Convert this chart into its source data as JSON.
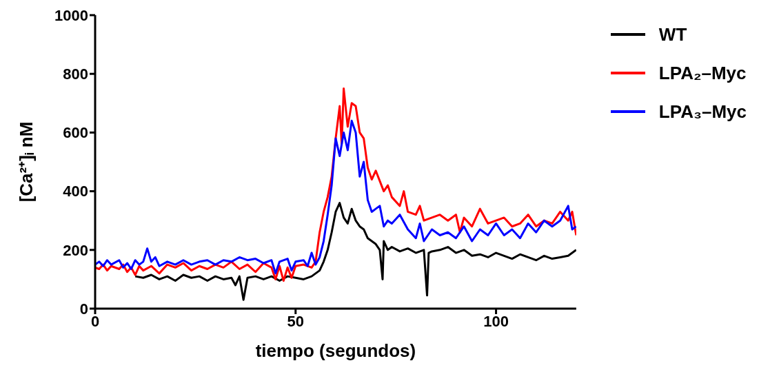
{
  "chart_data": {
    "type": "line",
    "xlabel": "tiempo (segundos)",
    "ylabel": "[Ca²⁺]ᵢ nM",
    "xlim": [
      0,
      120
    ],
    "xticks": [
      0,
      50,
      100
    ],
    "ylim": [
      0,
      1000
    ],
    "yticks": [
      0,
      200,
      400,
      600,
      800,
      1000
    ],
    "grid": false,
    "legend": "right",
    "marker": "none",
    "line_style": "solid",
    "series": [
      {
        "name": "WT",
        "color": "#000000",
        "x": [
          10,
          12,
          14,
          16,
          18,
          20,
          22,
          24,
          26,
          28,
          30,
          32,
          34,
          35,
          36,
          37,
          38,
          40,
          42,
          44,
          46,
          48,
          50,
          52,
          54,
          56,
          57,
          58,
          59,
          60,
          61,
          62,
          63,
          64,
          65,
          66,
          67,
          68,
          70,
          71,
          71.7,
          72,
          73,
          74,
          76,
          78,
          80,
          82,
          82.8,
          83.2,
          84,
          86,
          88,
          90,
          92,
          94,
          96,
          98,
          100,
          102,
          104,
          106,
          108,
          110,
          112,
          114,
          116,
          118,
          120
        ],
        "values": [
          110,
          105,
          115,
          100,
          110,
          95,
          115,
          105,
          110,
          95,
          110,
          100,
          105,
          80,
          110,
          30,
          105,
          110,
          100,
          110,
          95,
          110,
          105,
          100,
          110,
          130,
          160,
          200,
          260,
          330,
          360,
          310,
          290,
          340,
          300,
          280,
          270,
          240,
          220,
          200,
          100,
          230,
          200,
          210,
          195,
          205,
          190,
          200,
          45,
          190,
          195,
          200,
          210,
          190,
          200,
          180,
          185,
          175,
          190,
          180,
          170,
          185,
          175,
          165,
          180,
          170,
          175,
          180,
          200
        ]
      },
      {
        "name": "LPA₂–Myc",
        "color": "#ff0000",
        "x": [
          0,
          1,
          2,
          3,
          4,
          6,
          7,
          8,
          9,
          10,
          11,
          12,
          14,
          16,
          18,
          20,
          22,
          24,
          26,
          28,
          30,
          32,
          34,
          36,
          38,
          40,
          42,
          44,
          45,
          46,
          47,
          48,
          49,
          50,
          52,
          54,
          55,
          56,
          57,
          58,
          59,
          60,
          61,
          61.5,
          62,
          63,
          64,
          65,
          66,
          67,
          68,
          69,
          70,
          72,
          73,
          74,
          76,
          77,
          78,
          80,
          81,
          82,
          84,
          86,
          88,
          90,
          91,
          92,
          94,
          96,
          98,
          100,
          102,
          104,
          106,
          108,
          110,
          112,
          114,
          116,
          118,
          119,
          120
        ],
        "values": [
          140,
          135,
          150,
          130,
          145,
          135,
          150,
          125,
          140,
          115,
          145,
          130,
          145,
          120,
          150,
          140,
          155,
          130,
          145,
          135,
          150,
          140,
          160,
          135,
          150,
          125,
          155,
          140,
          100,
          145,
          95,
          140,
          105,
          145,
          150,
          140,
          160,
          260,
          330,
          380,
          450,
          580,
          690,
          560,
          750,
          620,
          700,
          690,
          600,
          580,
          480,
          440,
          470,
          400,
          420,
          380,
          350,
          400,
          330,
          320,
          350,
          300,
          310,
          320,
          300,
          320,
          260,
          310,
          280,
          340,
          290,
          300,
          310,
          280,
          290,
          320,
          280,
          300,
          290,
          330,
          300,
          330,
          250
        ]
      },
      {
        "name": "LPA₃–Myc",
        "color": "#0000ff",
        "x": [
          0,
          1,
          2,
          3,
          4,
          6,
          7,
          8,
          9,
          10,
          11,
          12,
          13,
          14,
          15,
          16,
          18,
          20,
          22,
          24,
          26,
          28,
          30,
          32,
          34,
          36,
          38,
          40,
          42,
          44,
          45,
          46,
          48,
          49,
          50,
          52,
          53,
          54,
          55,
          56,
          57,
          58,
          59,
          60,
          61,
          62,
          63,
          64,
          65,
          66,
          67,
          68,
          69,
          70,
          71,
          72,
          73,
          74,
          76,
          78,
          80,
          81,
          82,
          84,
          86,
          88,
          90,
          92,
          94,
          96,
          98,
          100,
          102,
          104,
          106,
          108,
          110,
          112,
          114,
          116,
          118,
          119,
          120
        ],
        "values": [
          150,
          160,
          145,
          165,
          150,
          165,
          140,
          155,
          135,
          165,
          150,
          160,
          205,
          160,
          175,
          145,
          160,
          150,
          165,
          150,
          160,
          165,
          150,
          165,
          160,
          175,
          165,
          170,
          155,
          165,
          120,
          160,
          170,
          130,
          160,
          165,
          145,
          190,
          150,
          175,
          230,
          320,
          420,
          580,
          520,
          600,
          540,
          640,
          600,
          450,
          500,
          370,
          330,
          340,
          350,
          280,
          300,
          290,
          320,
          270,
          240,
          290,
          230,
          270,
          250,
          260,
          240,
          280,
          230,
          270,
          250,
          290,
          250,
          270,
          240,
          290,
          260,
          300,
          280,
          300,
          350,
          270,
          280
        ]
      }
    ]
  }
}
